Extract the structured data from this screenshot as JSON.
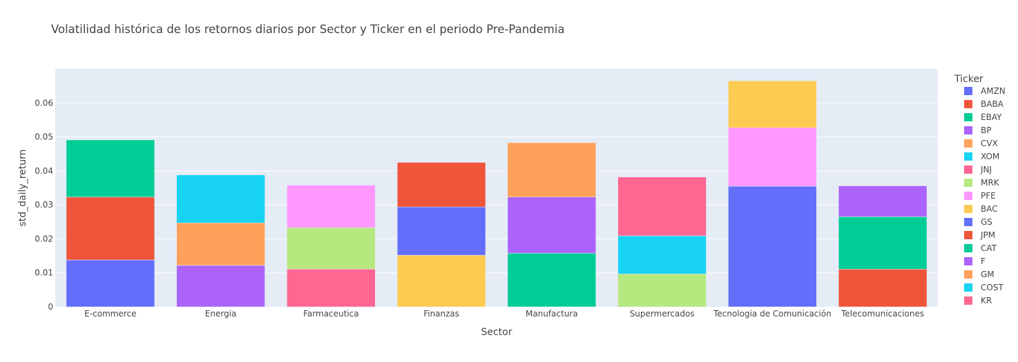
{
  "chart_data": {
    "type": "bar",
    "stacked": true,
    "title": "Volatilidad histórica de los retornos diarios por Sector y Ticker en el periodo Pre-Pandemia",
    "xlabel": "Sector",
    "ylabel": "std_daily_return",
    "ylim": [
      0,
      0.07
    ],
    "yticks": [
      "0",
      "0.01",
      "0.02",
      "0.03",
      "0.04",
      "0.05",
      "0.06"
    ],
    "grid": true,
    "legend_title": "Ticker",
    "legend_position": "right",
    "categories": [
      "E-commerce",
      "Energia",
      "Farmaceutica",
      "Finanzas",
      "Manufactura",
      "Supermercados",
      "Tecnologia de Comunicación",
      "Telecomunicaciones"
    ],
    "series": [
      {
        "name": "AMZN",
        "color": "#636efa",
        "values": [
          0.0138,
          null,
          null,
          null,
          null,
          null,
          0.0355,
          null
        ]
      },
      {
        "name": "BABA",
        "color": "#EF553B",
        "values": [
          0.0185,
          null,
          null,
          null,
          null,
          null,
          null,
          null
        ]
      },
      {
        "name": "EBAY",
        "color": "#00cc96",
        "values": [
          0.0168,
          null,
          null,
          null,
          null,
          null,
          null,
          null
        ]
      },
      {
        "name": "BP",
        "color": "#ab63fa",
        "values": [
          null,
          0.0122,
          null,
          null,
          null,
          null,
          null,
          null
        ]
      },
      {
        "name": "CVX",
        "color": "#FFA15A",
        "values": [
          null,
          0.0125,
          null,
          null,
          null,
          null,
          null,
          null
        ]
      },
      {
        "name": "XOM",
        "color": "#19d3f3",
        "values": [
          null,
          0.0141,
          null,
          null,
          null,
          null,
          null,
          null
        ]
      },
      {
        "name": "JNJ",
        "color": "#FF6692",
        "values": [
          null,
          null,
          0.0111,
          null,
          null,
          null,
          null,
          null
        ]
      },
      {
        "name": "MRK",
        "color": "#B6E880",
        "values": [
          null,
          null,
          0.0122,
          null,
          null,
          0.0097,
          null,
          null
        ]
      },
      {
        "name": "PFE",
        "color": "#FF97FF",
        "values": [
          null,
          null,
          0.0125,
          null,
          null,
          null,
          0.0172,
          null
        ]
      },
      {
        "name": "BAC",
        "color": "#FECB52",
        "values": [
          null,
          null,
          null,
          0.0152,
          null,
          null,
          0.0138,
          null
        ]
      },
      {
        "name": "GS",
        "color": "#636efa",
        "values": [
          null,
          null,
          null,
          0.0142,
          null,
          null,
          null,
          null
        ]
      },
      {
        "name": "JPM",
        "color": "#EF553B",
        "values": [
          null,
          null,
          null,
          0.0131,
          null,
          null,
          null,
          0.0111
        ]
      },
      {
        "name": "CAT",
        "color": "#00cc96",
        "values": [
          null,
          null,
          null,
          null,
          0.0158,
          null,
          null,
          0.0154
        ]
      },
      {
        "name": "F",
        "color": "#ab63fa",
        "values": [
          null,
          null,
          null,
          null,
          0.0165,
          null,
          null,
          0.0091
        ]
      },
      {
        "name": "GM",
        "color": "#FFA15A",
        "values": [
          null,
          null,
          null,
          null,
          0.016,
          null,
          null,
          null
        ]
      },
      {
        "name": "COST",
        "color": "#19d3f3",
        "values": [
          null,
          null,
          null,
          null,
          null,
          0.0112,
          null,
          null
        ]
      },
      {
        "name": "KR",
        "color": "#FF6692",
        "values": [
          null,
          null,
          null,
          null,
          null,
          0.0173,
          null,
          null
        ]
      }
    ]
  }
}
